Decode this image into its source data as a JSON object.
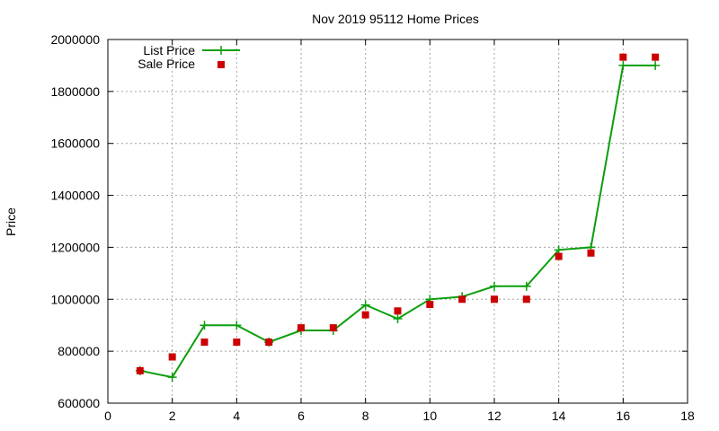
{
  "chart_data": {
    "type": "line",
    "title": "Nov 2019 95112 Home Prices",
    "xlabel": "",
    "ylabel": "Price",
    "xlim": [
      0,
      18
    ],
    "ylim": [
      600000,
      2000000
    ],
    "xticks": [
      0,
      2,
      4,
      6,
      8,
      10,
      12,
      14,
      16,
      18
    ],
    "yticks": [
      600000,
      800000,
      1000000,
      1200000,
      1400000,
      1600000,
      1800000,
      2000000
    ],
    "grid": true,
    "legend_position": "top-left",
    "series": [
      {
        "name": "List Price",
        "style": "line-with-plus-markers",
        "color": "#0c9e0c",
        "x": [
          1,
          2,
          3,
          4,
          5,
          6,
          7,
          8,
          9,
          10,
          11,
          12,
          13,
          14,
          15,
          16,
          17
        ],
        "y": [
          725000,
          700000,
          900000,
          900000,
          835000,
          880000,
          880000,
          978000,
          925000,
          1000000,
          1010000,
          1050000,
          1050000,
          1190000,
          1200000,
          1900000,
          1900000
        ]
      },
      {
        "name": "Sale Price",
        "style": "square-markers",
        "color": "#cc0000",
        "x": [
          1,
          2,
          3,
          4,
          5,
          6,
          7,
          8,
          9,
          10,
          11,
          12,
          13,
          14,
          15,
          16,
          17
        ],
        "y": [
          725000,
          778000,
          835000,
          835000,
          835000,
          890000,
          890000,
          940000,
          955000,
          980000,
          1000000,
          1000000,
          1000000,
          1165000,
          1178000,
          1932000,
          1932000
        ]
      }
    ]
  }
}
